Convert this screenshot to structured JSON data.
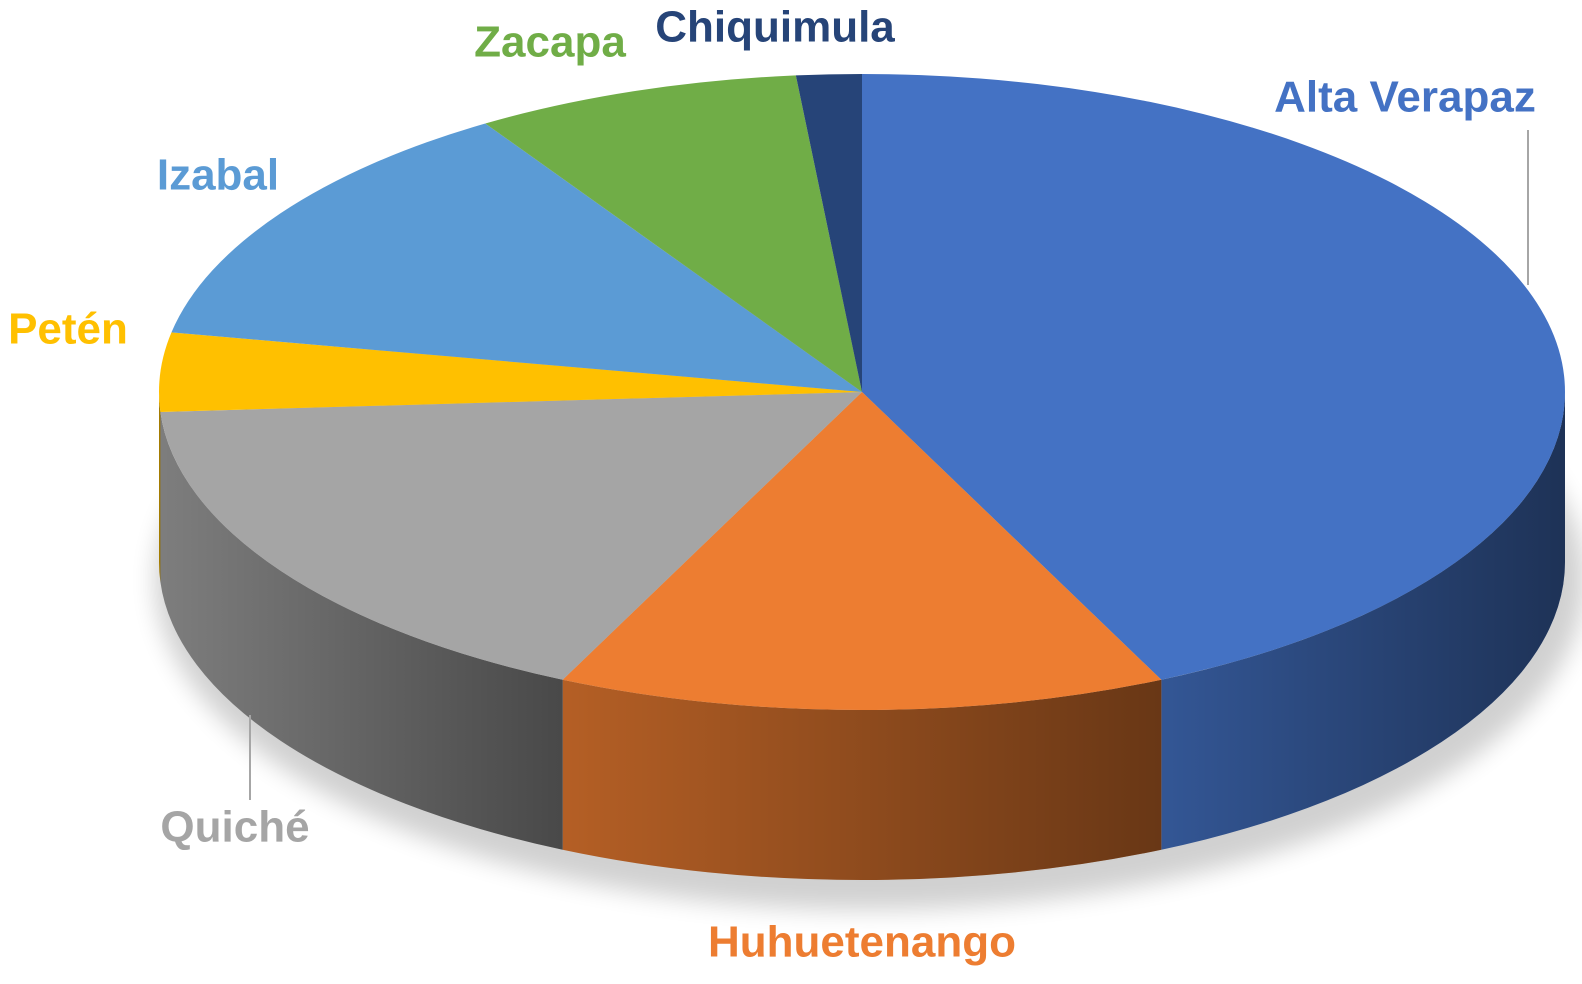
{
  "chart_data": {
    "type": "pie",
    "categories": [
      "Alta Verapaz",
      "Huhuetenango",
      "Quiché",
      "Petén",
      "Izabal",
      "Zacapa",
      "Chiquimula"
    ],
    "values": [
      43,
      14,
      17,
      4,
      13,
      7.5,
      1.5
    ],
    "colors": [
      "#4472c4",
      "#ed7d31",
      "#a5a5a5",
      "#ffc000",
      "#5b9bd5",
      "#70ad47",
      "#264478"
    ]
  }
}
